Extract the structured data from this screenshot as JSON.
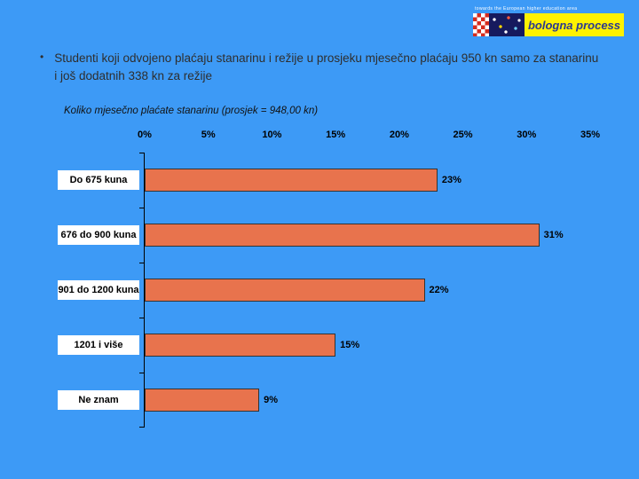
{
  "slide": {
    "background_color": "#3D9AF6",
    "bullet_text": "Studenti koji odvojeno plaćaju stanarinu i režije u prosjeku mjesečno plaćaju 950 kn samo za stanarinu i još dodatnih 338 kn za režije",
    "bullet_marker": "•"
  },
  "logo": {
    "tagline": "towards the European higher education area",
    "text": "bologna process",
    "bg_color": "#FFF200",
    "text_color": "#2B3990"
  },
  "chart_data": {
    "type": "bar",
    "orientation": "horizontal",
    "title": "Koliko mjesečno plaćate stanarinu (prosjek = 948,00 kn)",
    "categories": [
      "Do 675 kuna",
      "676 do 900 kuna",
      "901 do 1200 kuna",
      "1201 i više",
      "Ne znam"
    ],
    "values": [
      23,
      31,
      22,
      15,
      9
    ],
    "value_labels": [
      "23%",
      "31%",
      "22%",
      "15%",
      "9%"
    ],
    "axis_ticks": [
      "0%",
      "5%",
      "10%",
      "15%",
      "20%",
      "25%",
      "30%",
      "35%"
    ],
    "xlim": [
      0,
      35
    ],
    "grid": false,
    "legend": false,
    "bar_color": "#E8734D"
  }
}
